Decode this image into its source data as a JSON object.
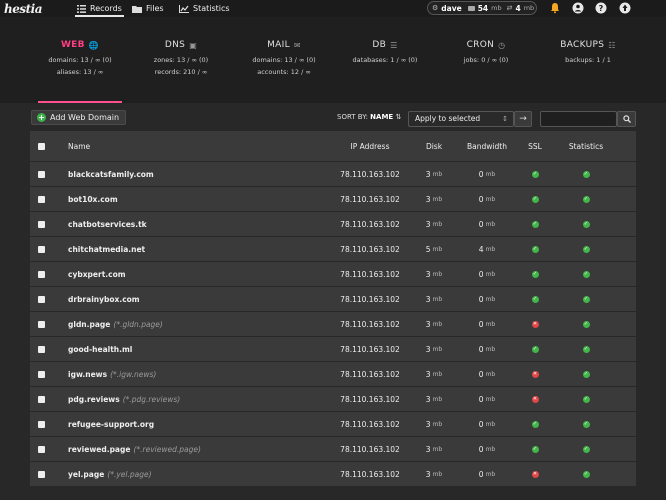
{
  "topbar": {
    "logo": "hestia",
    "nav": [
      {
        "label": "Records",
        "icon": "list-icon"
      },
      {
        "label": "Files",
        "icon": "folder-icon"
      },
      {
        "label": "Statistics",
        "icon": "chart-icon"
      }
    ],
    "user": {
      "name": "dave",
      "disk": "54",
      "disk_unit": "mb",
      "bandwidth": "4",
      "bw_unit": "mb"
    }
  },
  "panel": {
    "tabs": [
      {
        "title": "WEB",
        "icon": "globe-icon",
        "line1": "domains: 13 / ∞ (0)",
        "line2": "aliases: 13 / ∞"
      },
      {
        "title": "DNS",
        "icon": "book-icon",
        "line1": "zones: 13 / ∞ (0)",
        "line2": "records: 210 / ∞"
      },
      {
        "title": "MAIL",
        "icon": "mail-icon",
        "line1": "domains: 13 / ∞ (0)",
        "line2": "accounts: 12 / ∞"
      },
      {
        "title": "DB",
        "icon": "database-icon",
        "line1": "databases: 1 / ∞ (0)",
        "line2": ""
      },
      {
        "title": "CRON",
        "icon": "clock-icon",
        "line1": "jobs: 0 / ∞ (0)",
        "line2": ""
      },
      {
        "title": "BACKUPS",
        "icon": "file-icon",
        "line1": "backups: 1 / 1",
        "line2": ""
      }
    ]
  },
  "toolbar": {
    "add_label": "Add Web Domain",
    "sort_label": "SORT BY:",
    "sort_value": "NAME",
    "apply_label": "Apply to selected",
    "search_placeholder": ""
  },
  "table": {
    "headers": {
      "name": "Name",
      "ip": "IP Address",
      "disk": "Disk",
      "bandwidth": "Bandwidth",
      "ssl": "SSL",
      "stats": "Statistics"
    },
    "rows": [
      {
        "name": "blackcatsfamily.com",
        "alias": "",
        "ip": "78.110.163.102",
        "disk": "3",
        "bw": "0",
        "ssl": true,
        "stats": true
      },
      {
        "name": "bot10x.com",
        "alias": "",
        "ip": "78.110.163.102",
        "disk": "3",
        "bw": "0",
        "ssl": true,
        "stats": true
      },
      {
        "name": "chatbotservices.tk",
        "alias": "",
        "ip": "78.110.163.102",
        "disk": "3",
        "bw": "0",
        "ssl": true,
        "stats": true
      },
      {
        "name": "chitchatmedia.net",
        "alias": "",
        "ip": "78.110.163.102",
        "disk": "5",
        "bw": "4",
        "ssl": true,
        "stats": true
      },
      {
        "name": "cybxpert.com",
        "alias": "",
        "ip": "78.110.163.102",
        "disk": "3",
        "bw": "0",
        "ssl": true,
        "stats": true
      },
      {
        "name": "drbrainybox.com",
        "alias": "",
        "ip": "78.110.163.102",
        "disk": "3",
        "bw": "0",
        "ssl": true,
        "stats": true
      },
      {
        "name": "gldn.page",
        "alias": "(*.gldn.page)",
        "ip": "78.110.163.102",
        "disk": "3",
        "bw": "0",
        "ssl": false,
        "stats": true
      },
      {
        "name": "good-health.ml",
        "alias": "",
        "ip": "78.110.163.102",
        "disk": "3",
        "bw": "0",
        "ssl": true,
        "stats": true
      },
      {
        "name": "igw.news",
        "alias": "(*.igw.news)",
        "ip": "78.110.163.102",
        "disk": "3",
        "bw": "0",
        "ssl": false,
        "stats": true
      },
      {
        "name": "pdg.reviews",
        "alias": "(*.pdg.reviews)",
        "ip": "78.110.163.102",
        "disk": "3",
        "bw": "0",
        "ssl": false,
        "stats": true
      },
      {
        "name": "refugee-support.org",
        "alias": "",
        "ip": "78.110.163.102",
        "disk": "3",
        "bw": "0",
        "ssl": true,
        "stats": true
      },
      {
        "name": "reviewed.page",
        "alias": "(*.reviewed.page)",
        "ip": "78.110.163.102",
        "disk": "3",
        "bw": "0",
        "ssl": true,
        "stats": true
      },
      {
        "name": "yel.page",
        "alias": "(*.yel.page)",
        "ip": "78.110.163.102",
        "disk": "3",
        "bw": "0",
        "ssl": false,
        "stats": true
      }
    ],
    "unit": "mb"
  },
  "colors": {
    "accent": "#ff3f84",
    "ok": "#42b649",
    "error": "#e04646"
  }
}
